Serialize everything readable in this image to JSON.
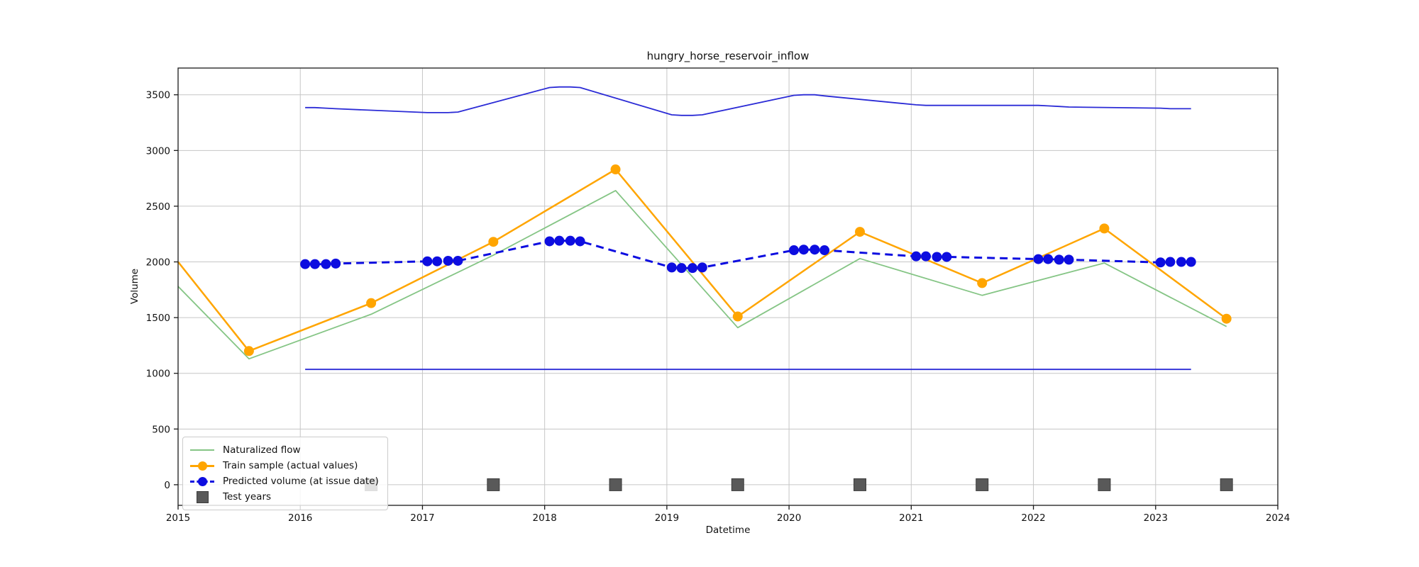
{
  "chart_data": {
    "type": "line",
    "title": "hungry_horse_reservoir_inflow",
    "xlabel": "Datetime",
    "ylabel": "Volume",
    "xlim": [
      2015,
      2024
    ],
    "ylim": [
      -185,
      3740
    ],
    "x_ticks": [
      2015,
      2016,
      2017,
      2018,
      2019,
      2020,
      2021,
      2022,
      2023,
      2024
    ],
    "y_ticks": [
      0,
      500,
      1000,
      1500,
      2000,
      2500,
      3000,
      3500
    ],
    "grid": true,
    "grid_color": "#c6c6c6",
    "background": "#ffffff",
    "series": [
      {
        "name": "Naturalized flow",
        "color": "#85c585",
        "style": "solid",
        "width": 1.8,
        "marker": "none",
        "x": [
          2015.0,
          2015.58,
          2016.58,
          2017.58,
          2018.58,
          2019.58,
          2020.58,
          2021.58,
          2022.58,
          2023.58
        ],
        "y": [
          1780,
          1130,
          1530,
          2060,
          2640,
          1410,
          2030,
          1700,
          1990,
          1420
        ]
      },
      {
        "name": "Train sample (actual values)",
        "color": "#ffa500",
        "style": "solid",
        "width": 2.5,
        "marker": "circle",
        "marker_skip_first": true,
        "x": [
          2015.0,
          2015.58,
          2016.58,
          2017.58,
          2018.58,
          2019.58,
          2020.58,
          2021.58,
          2022.58,
          2023.58
        ],
        "y": [
          2000,
          1200,
          1630,
          2180,
          2830,
          1510,
          2270,
          1810,
          2300,
          1490
        ]
      },
      {
        "name": "Predicted volume (at issue date)",
        "color": "#0d0de0",
        "style": "dashed",
        "width": 3,
        "marker": "circle",
        "x": [
          2016.04,
          2016.12,
          2016.21,
          2016.29,
          2017.04,
          2017.12,
          2017.21,
          2017.29,
          2018.04,
          2018.12,
          2018.21,
          2018.29,
          2019.04,
          2019.12,
          2019.21,
          2019.29,
          2020.04,
          2020.12,
          2020.21,
          2020.29,
          2021.04,
          2021.12,
          2021.21,
          2021.29,
          2022.04,
          2022.12,
          2022.21,
          2022.29,
          2023.04,
          2023.12,
          2023.21,
          2023.29
        ],
        "y": [
          1980,
          1980,
          1980,
          1985,
          2005,
          2005,
          2010,
          2010,
          2185,
          2190,
          2190,
          2185,
          1950,
          1945,
          1945,
          1950,
          2105,
          2110,
          2110,
          2105,
          2050,
          2050,
          2045,
          2045,
          2025,
          2025,
          2020,
          2020,
          1995,
          2000,
          2000,
          2000
        ]
      },
      {
        "name": "upper bound",
        "color": "#2b2bd6",
        "style": "solid",
        "width": 1.8,
        "marker": "none",
        "x": [
          2016.04,
          2016.12,
          2016.21,
          2016.29,
          2017.04,
          2017.12,
          2017.21,
          2017.29,
          2018.04,
          2018.12,
          2018.21,
          2018.29,
          2019.04,
          2019.12,
          2019.21,
          2019.29,
          2020.04,
          2020.12,
          2020.21,
          2020.29,
          2021.04,
          2021.12,
          2021.21,
          2021.29,
          2022.04,
          2022.12,
          2022.21,
          2022.29,
          2023.04,
          2023.12,
          2023.21,
          2023.29
        ],
        "y": [
          3385,
          3385,
          3380,
          3375,
          3340,
          3340,
          3340,
          3345,
          3565,
          3570,
          3570,
          3565,
          3320,
          3315,
          3315,
          3320,
          3495,
          3500,
          3500,
          3490,
          3410,
          3405,
          3405,
          3405,
          3405,
          3400,
          3395,
          3390,
          3380,
          3375,
          3375,
          3375
        ]
      },
      {
        "name": "lower bound",
        "color": "#2b2bd6",
        "style": "solid",
        "width": 1.8,
        "marker": "none",
        "x": [
          2016.04,
          2023.29
        ],
        "y": [
          1035,
          1035
        ]
      }
    ],
    "test_years": {
      "label": "Test years",
      "x": [
        2016.58,
        2017.58,
        2018.58,
        2019.58,
        2020.58,
        2021.58,
        2022.58,
        2023.58
      ],
      "y": 0,
      "color": "#595959",
      "edge_color": "#3d3d3d"
    },
    "legend": [
      {
        "label": "Naturalized flow",
        "swatch": "line",
        "color": "#85c585"
      },
      {
        "label": "Train sample (actual values)",
        "swatch": "line-marker",
        "color": "#ffa500"
      },
      {
        "label": "Predicted volume (at issue date)",
        "swatch": "dashed-marker",
        "color": "#0d0de0"
      },
      {
        "label": "Test years",
        "swatch": "square",
        "color": "#595959"
      }
    ]
  }
}
